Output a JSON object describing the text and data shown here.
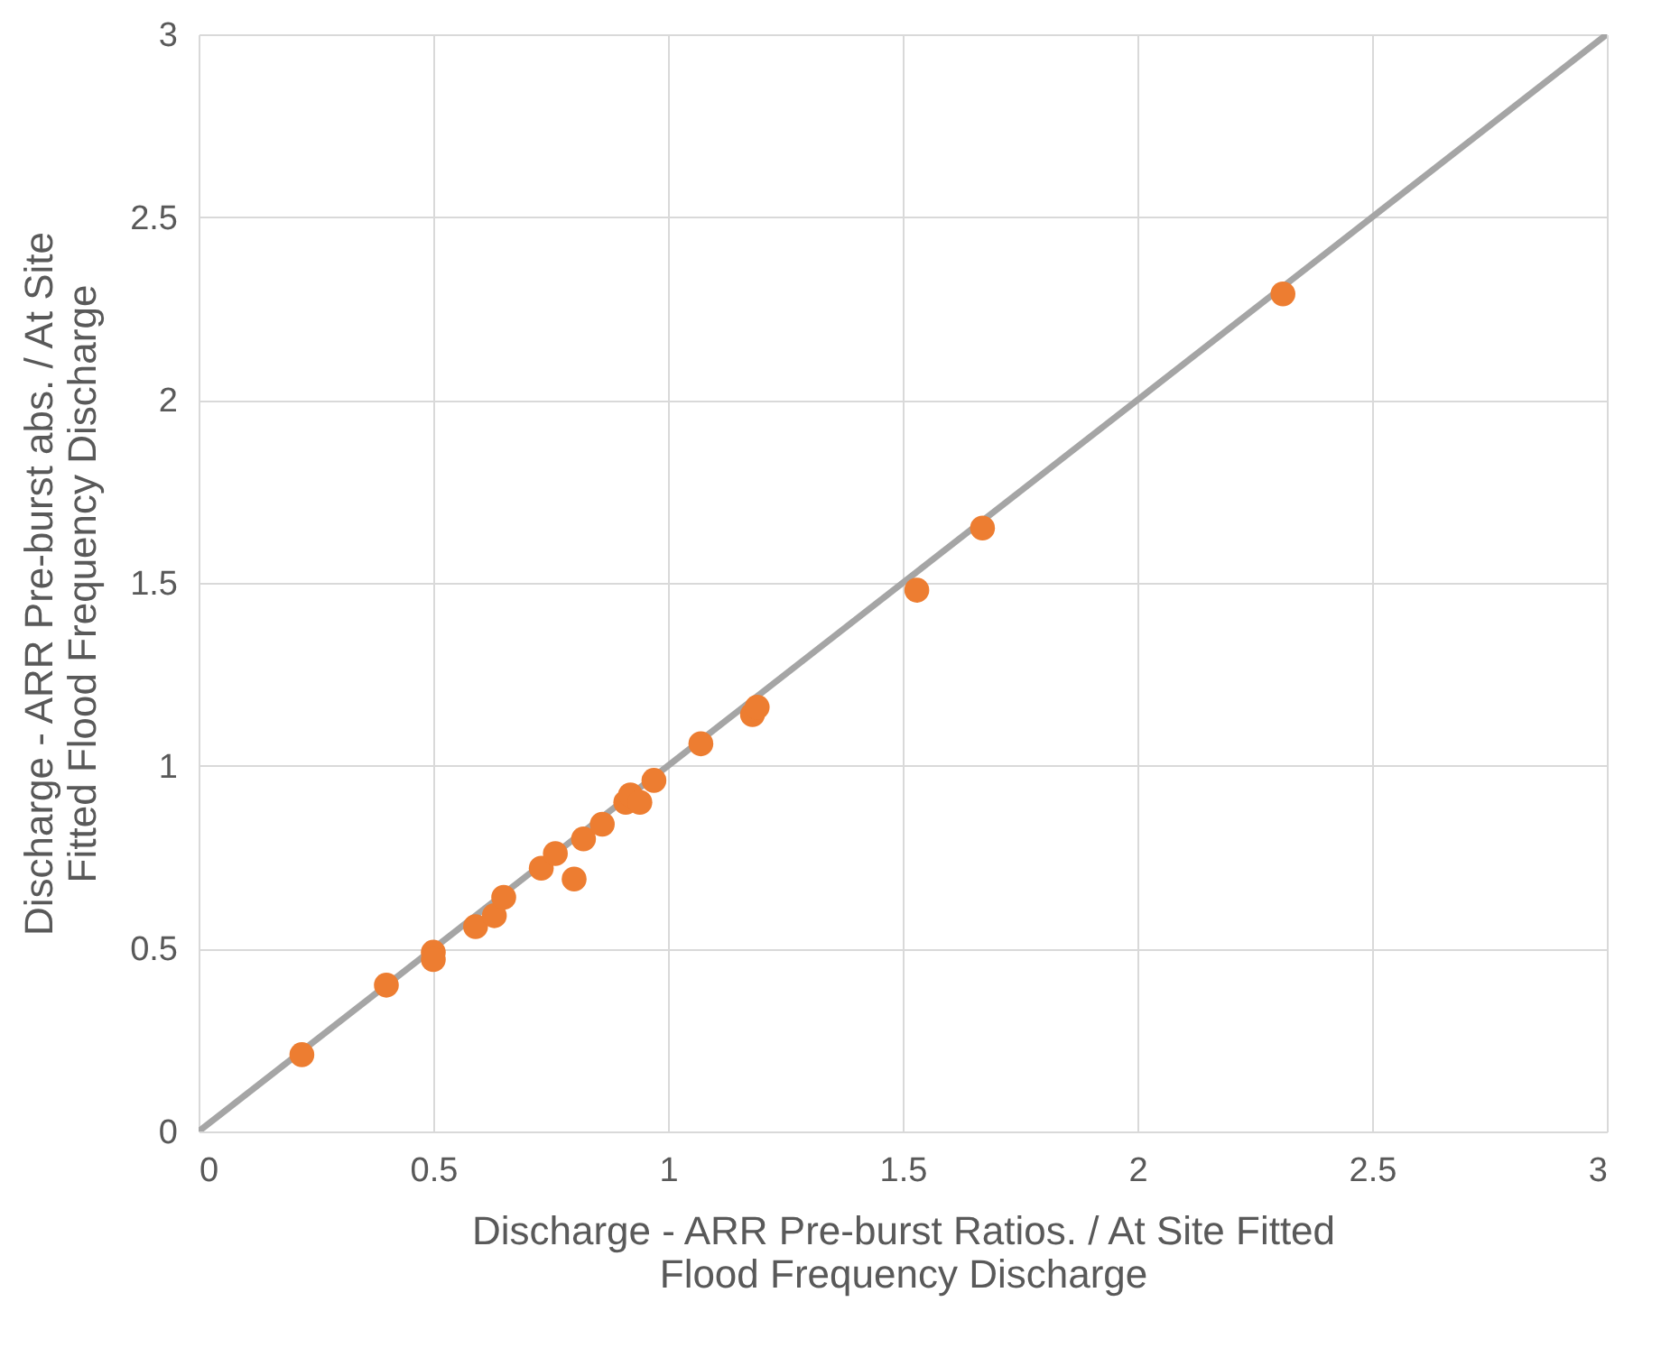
{
  "chart_data": {
    "type": "scatter",
    "xlabel": "Discharge - ARR Pre-burst Ratios. / At Site Fitted Flood Frequency Discharge",
    "ylabel": "Discharge - ARR Pre-burst abs. / At Site Fitted Flood Frequency Discharge",
    "xlim": [
      0,
      3
    ],
    "ylim": [
      0,
      3
    ],
    "xticks": [
      0,
      0.5,
      1,
      1.5,
      2,
      2.5,
      3
    ],
    "yticks": [
      0,
      0.5,
      1,
      1.5,
      2,
      2.5,
      3
    ],
    "grid": true,
    "marker": "circle",
    "series": [
      {
        "type": "line",
        "color": "#a5a5a5",
        "x": [
          0,
          3
        ],
        "values": [
          0,
          3
        ],
        "marker": "none"
      },
      {
        "color": "#ed7d31",
        "x": [
          0.22,
          0.4,
          0.5,
          0.5,
          0.59,
          0.63,
          0.65,
          0.73,
          0.76,
          0.8,
          0.82,
          0.86,
          0.91,
          0.92,
          0.94,
          0.97,
          1.07,
          1.18,
          1.19,
          1.53,
          1.67,
          2.31
        ],
        "values": [
          0.21,
          0.4,
          0.49,
          0.47,
          0.56,
          0.59,
          0.64,
          0.72,
          0.76,
          0.69,
          0.8,
          0.84,
          0.9,
          0.92,
          0.9,
          0.96,
          1.06,
          1.14,
          1.16,
          1.48,
          1.65,
          2.29
        ]
      }
    ]
  }
}
